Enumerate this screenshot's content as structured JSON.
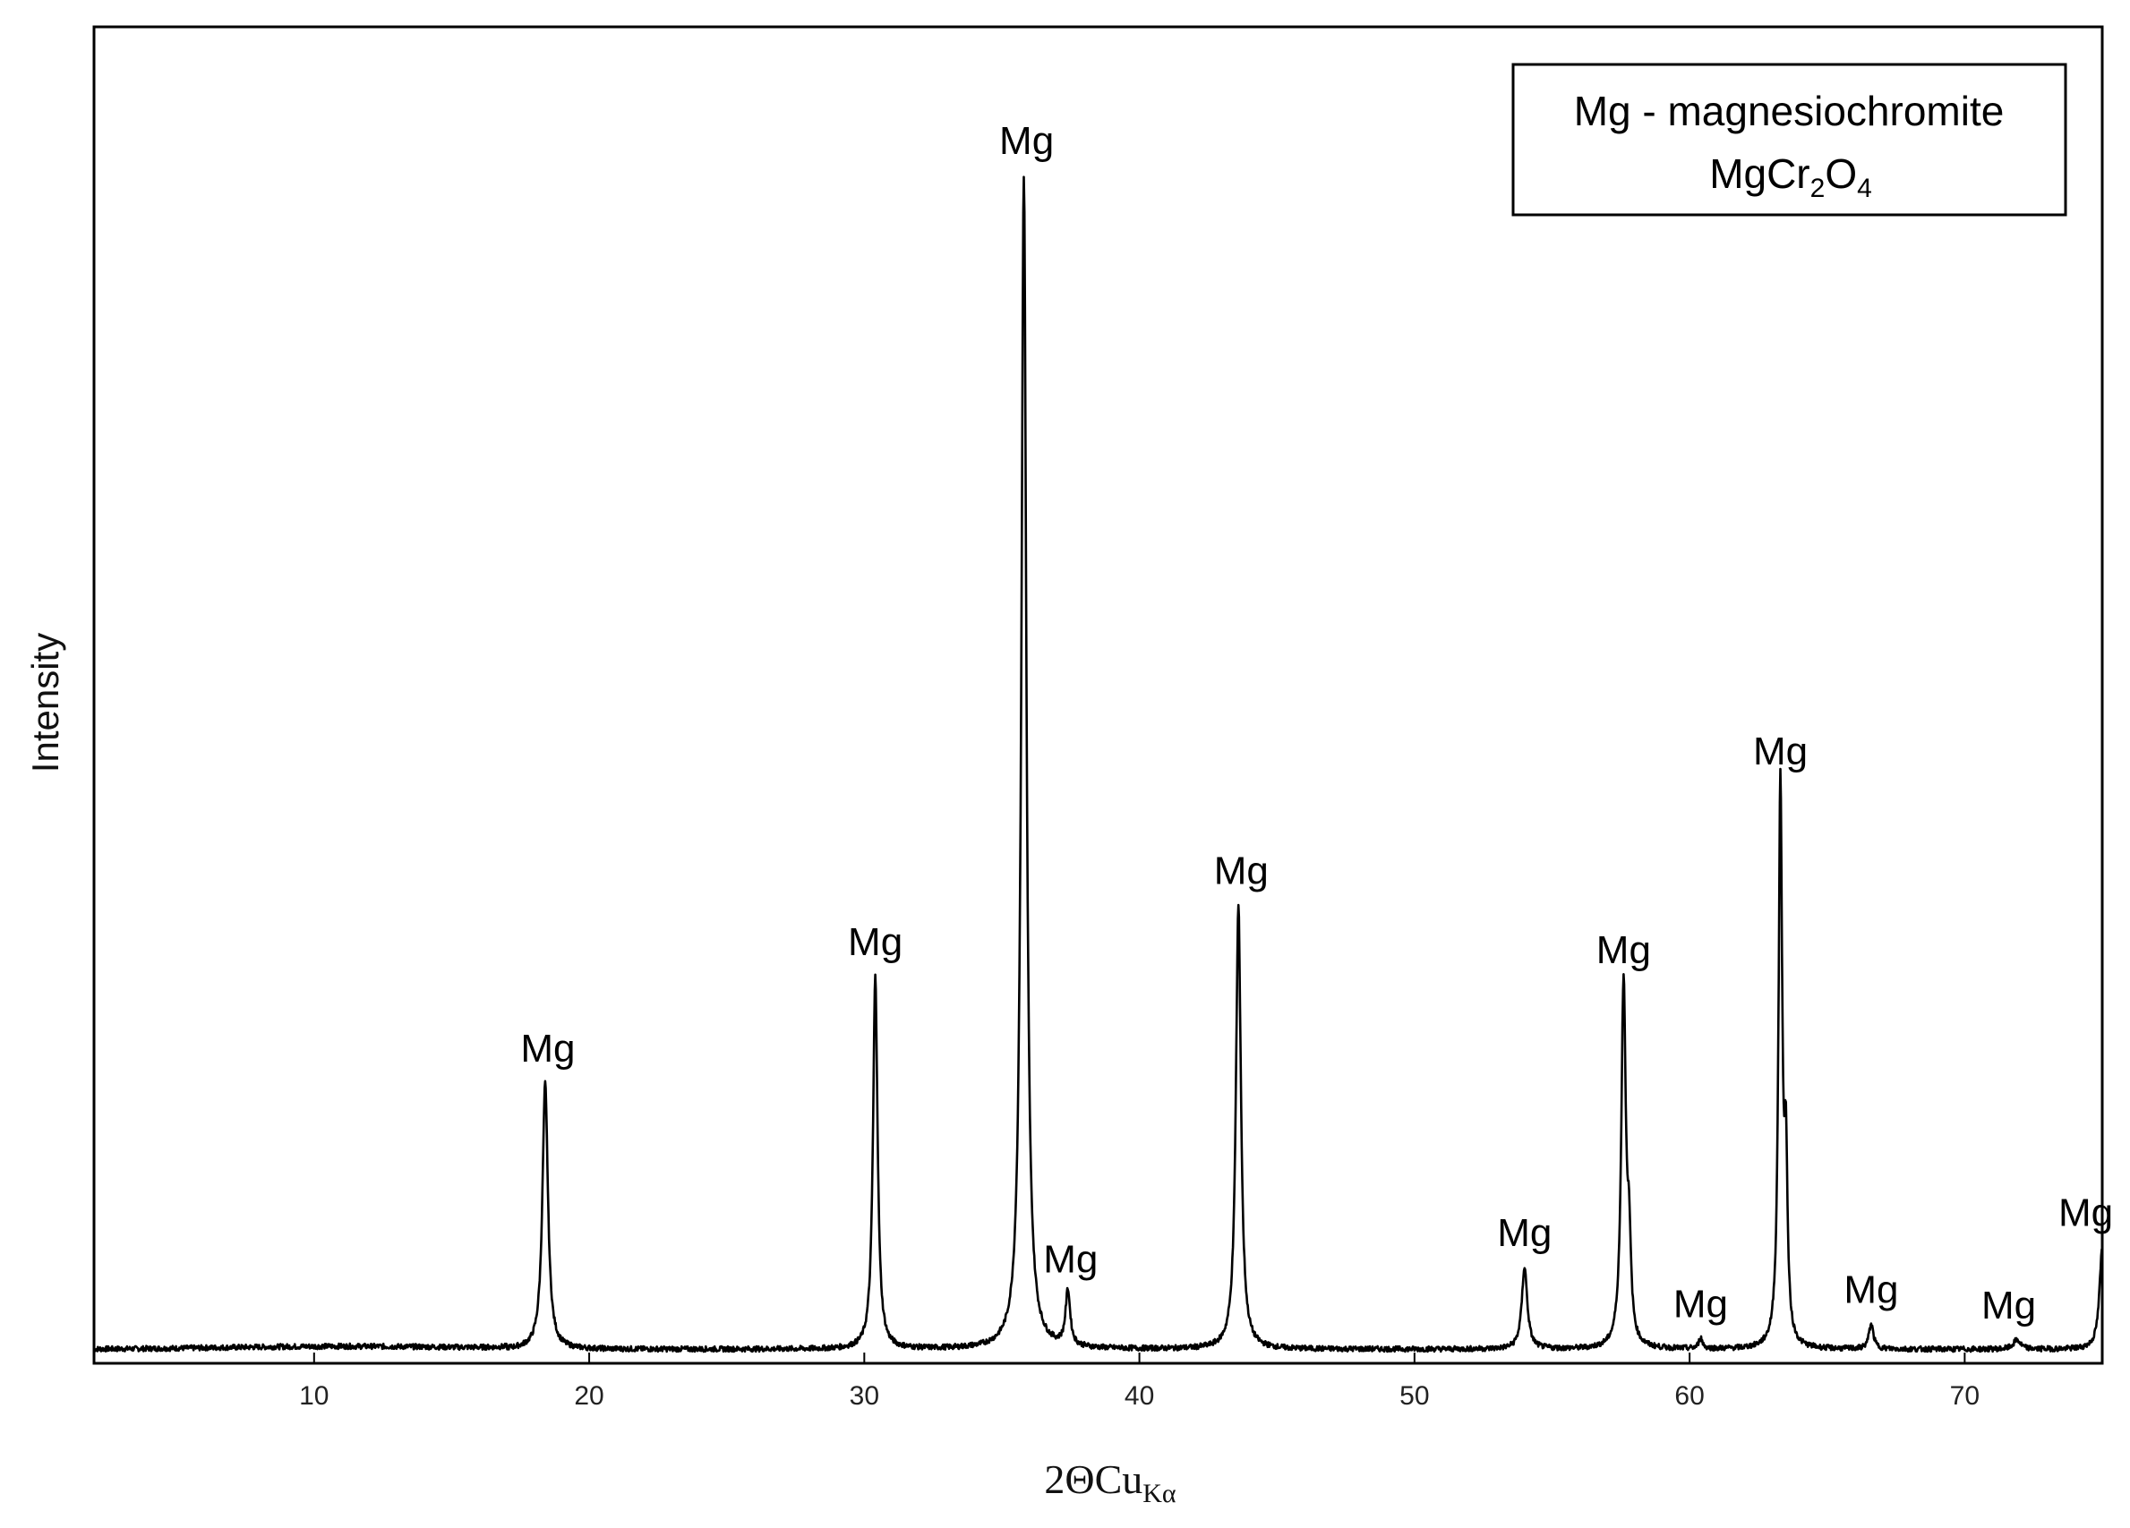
{
  "chart_data": {
    "type": "line",
    "title": "",
    "xlabel": {
      "main": "2ΘCu",
      "sub": "Kα"
    },
    "ylabel": "Intensity",
    "xlim": [
      2,
      75
    ],
    "ylim": [
      0,
      100
    ],
    "xticks": [
      10,
      20,
      30,
      40,
      50,
      60,
      70
    ],
    "xtick_labels": [
      "10",
      "20",
      "30",
      "40",
      "50",
      "60",
      "70"
    ],
    "grid": false,
    "legend": {
      "placement": "top-right",
      "line1": "Mg - magnesiochromite",
      "formula": [
        {
          "text": "MgCr",
          "sub": false
        },
        {
          "text": "2",
          "sub": true
        },
        {
          "text": "O",
          "sub": false
        },
        {
          "text": "4",
          "sub": true
        }
      ]
    },
    "baseline": 0.8,
    "series": [
      {
        "peaks": [
          {
            "x": 18.4,
            "y": 23.3,
            "w": 0.12
          },
          {
            "x": 30.4,
            "y": 32.3,
            "w": 0.1
          },
          {
            "x": 31.5,
            "y": 0.8,
            "w": 0.05
          },
          {
            "x": 35.8,
            "y": 100,
            "w": 0.11
          },
          {
            "x": 37.4,
            "y": 5.5,
            "w": 0.1
          },
          {
            "x": 43.6,
            "y": 38.3,
            "w": 0.11
          },
          {
            "x": 45.6,
            "y": 0.8,
            "w": 0.06
          },
          {
            "x": 54.0,
            "y": 7.7,
            "w": 0.12
          },
          {
            "x": 57.6,
            "y": 31.6,
            "w": 0.1
          },
          {
            "x": 57.8,
            "y": 8.0,
            "w": 0.08
          },
          {
            "x": 60.4,
            "y": 1.7,
            "w": 0.08
          },
          {
            "x": 63.3,
            "y": 48.4,
            "w": 0.08
          },
          {
            "x": 63.5,
            "y": 15.0,
            "w": 0.07
          },
          {
            "x": 66.6,
            "y": 2.9,
            "w": 0.1
          },
          {
            "x": 71.9,
            "y": 1.6,
            "w": 0.15
          },
          {
            "x": 75.0,
            "y": 9.4,
            "w": 0.12
          }
        ]
      }
    ],
    "annotations": [
      {
        "text": "Mg",
        "x": 18.5,
        "y": 23.3
      },
      {
        "text": "Mg",
        "x": 30.4,
        "y": 32.3
      },
      {
        "text": "Mg",
        "x": 35.9,
        "y": 100
      },
      {
        "text": "Mg",
        "x": 37.5,
        "y": 5.5
      },
      {
        "text": "Mg",
        "x": 43.7,
        "y": 38.3
      },
      {
        "text": "Mg",
        "x": 54.0,
        "y": 7.7
      },
      {
        "text": "Mg",
        "x": 57.6,
        "y": 31.6
      },
      {
        "text": "Mg",
        "x": 60.4,
        "y": 1.7
      },
      {
        "text": "Mg",
        "x": 63.3,
        "y": 48.4
      },
      {
        "text": "Mg",
        "x": 66.6,
        "y": 2.9
      },
      {
        "text": "Mg",
        "x": 71.6,
        "y": 1.6
      },
      {
        "text": "Mg",
        "x": 74.4,
        "y": 9.4
      }
    ]
  }
}
